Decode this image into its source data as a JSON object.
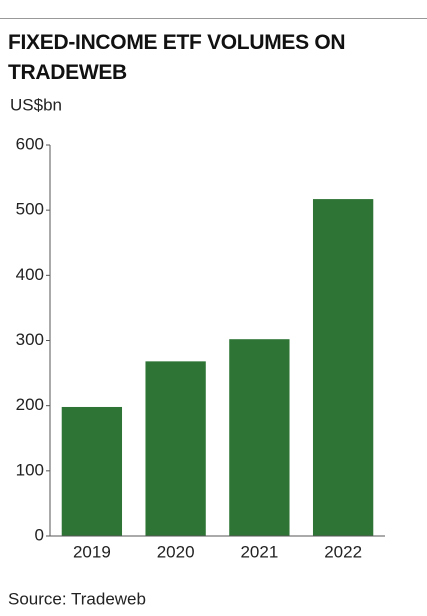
{
  "chart_data": {
    "type": "bar",
    "title": "FIXED-INCOME ETF VOLUMES ON TRADEWEB",
    "y_label": "US$bn",
    "categories": [
      "2019",
      "2020",
      "2021",
      "2022"
    ],
    "values": [
      198,
      268,
      302,
      517
    ],
    "color": "#2e7535",
    "ylim": [
      0,
      600
    ],
    "yticks": [
      0,
      100,
      200,
      300,
      400,
      500,
      600
    ],
    "grid": false,
    "source": "Source: Tradeweb"
  }
}
